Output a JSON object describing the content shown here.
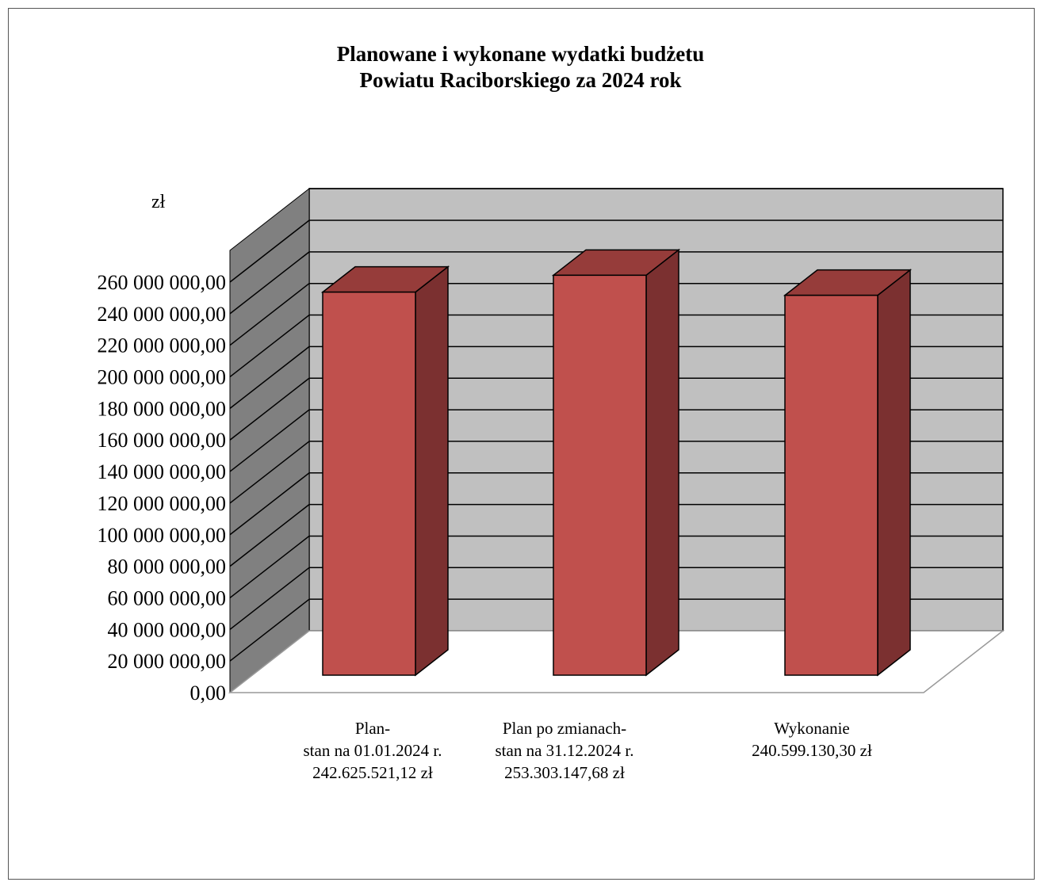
{
  "chart_data": {
    "type": "bar",
    "title": [
      "Planowane i wykonane wydatki budżetu",
      "Powiatu Raciborskiego za 2024 rok"
    ],
    "ylabel": "zł",
    "ylim": [
      0,
      260000000
    ],
    "y_step": 20000000,
    "y_ticks": [
      "0,00",
      "20 000 000,00",
      "40 000 000,00",
      "60 000 000,00",
      "80 000 000,00",
      "100 000 000,00",
      "120 000 000,00",
      "140 000 000,00",
      "160 000 000,00",
      "180 000 000,00",
      "200 000 000,00",
      "220 000 000,00",
      "240 000 000,00",
      "260 000 000,00"
    ],
    "categories": [
      [
        "Plan-",
        "stan na 01.01.2024 r.",
        "242.625.521,12 zł"
      ],
      [
        "Plan po zmianach-",
        "stan na 31.12.2024 r.",
        "253.303.147,68 zł"
      ],
      [
        "Wykonanie",
        "240.599.130,30 zł"
      ]
    ],
    "values": [
      242625521.12,
      253303147.68,
      240599130.3
    ],
    "grid": true,
    "legend": "none",
    "colors": {
      "bar_front": "#c0504d",
      "bar_side": "#7b3030",
      "bar_top": "#963c3a",
      "back_wall": "#c0c0c0",
      "side_wall": "#808080",
      "floor": "#ffffff"
    }
  }
}
